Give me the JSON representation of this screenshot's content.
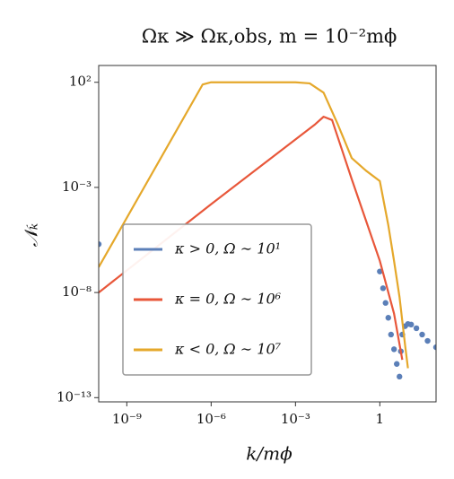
{
  "chart_data": {
    "type": "line",
    "title": "Ωκ ≫ Ωκ,obs, m = 10⁻²mϕ",
    "xlabel": "k/mϕ",
    "ylabel": "𝒩ₖ",
    "xscale": "log",
    "yscale": "log",
    "xlim": [
      1e-10,
      100
    ],
    "ylim": [
      6.3e-14,
      630
    ],
    "xticks": [
      {
        "value": 1e-09,
        "label": "10⁻⁹"
      },
      {
        "value": 1e-06,
        "label": "10⁻⁶"
      },
      {
        "value": 0.001,
        "label": "10⁻³"
      },
      1
    ],
    "yticks": [
      {
        "value": 100,
        "label": "10²"
      },
      {
        "value": 0.001,
        "label": "10⁻³"
      },
      {
        "value": 1e-08,
        "label": "10⁻⁸"
      },
      {
        "value": 1e-13,
        "label": "10⁻¹³"
      }
    ],
    "grid": false,
    "legend": "lower left",
    "series": [
      {
        "name": "κ > 0, Ω ∼ 10¹",
        "color": "#5b7fb8",
        "style": "scatter",
        "x": [
          1e-10,
          1,
          1.3,
          1.6,
          2,
          2.5,
          3.2,
          4,
          5,
          5.6,
          6.3,
          7.9,
          10,
          13,
          20,
          32,
          50,
          100
        ],
        "values": [
          2e-06,
          1e-07,
          1.6e-08,
          3.2e-09,
          6.3e-10,
          1e-10,
          2e-11,
          4e-12,
          1e-12,
          1.6e-11,
          1e-10,
          2.5e-10,
          3.2e-10,
          3e-10,
          2e-10,
          1e-10,
          5e-11,
          2.5e-11
        ]
      },
      {
        "name": "κ = 0, Ω ∼ 10⁶",
        "color": "#e8573a",
        "style": "line",
        "x": [
          1e-10,
          1e-06,
          0.005,
          0.01,
          0.02,
          0.1,
          1,
          3.2,
          6.3
        ],
        "values": [
          1e-08,
          0.00016,
          1,
          2.3,
          1.6,
          0.0025,
          3.2e-07,
          1e-09,
          6.3e-12
        ]
      },
      {
        "name": "κ < 0, Ω ∼ 10⁷",
        "color": "#e5a82b",
        "style": "line",
        "x": [
          1e-10,
          5e-07,
          1e-06,
          0.001,
          0.0032,
          0.01,
          0.032,
          0.1,
          0.32,
          1,
          2,
          3.2,
          5,
          7.9,
          10
        ],
        "values": [
          1.6e-07,
          79,
          100,
          100,
          89,
          32,
          1,
          0.025,
          0.0063,
          0.002,
          1.6e-05,
          3.2e-07,
          6.3e-09,
          3.2e-11,
          2.5e-12
        ]
      }
    ]
  }
}
